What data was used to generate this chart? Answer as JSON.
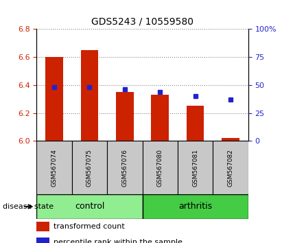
{
  "title": "GDS5243 / 10559580",
  "samples": [
    "GSM567074",
    "GSM567075",
    "GSM567076",
    "GSM567080",
    "GSM567081",
    "GSM567082"
  ],
  "transformed_counts": [
    6.6,
    6.65,
    6.35,
    6.33,
    6.25,
    6.02
  ],
  "percentile_ranks": [
    48,
    48,
    46,
    44,
    40,
    37
  ],
  "ylim_left": [
    6.0,
    6.8
  ],
  "ylim_right": [
    0,
    100
  ],
  "yticks_left": [
    6.0,
    6.2,
    6.4,
    6.6,
    6.8
  ],
  "yticks_right": [
    0,
    25,
    50,
    75,
    100
  ],
  "groups": [
    {
      "label": "control",
      "indices": [
        0,
        1,
        2
      ],
      "color": "#90ee90"
    },
    {
      "label": "arthritis",
      "indices": [
        3,
        4,
        5
      ],
      "color": "#44cc44"
    }
  ],
  "bar_color": "#cc2200",
  "dot_color": "#2222cc",
  "bar_width": 0.5,
  "tick_label_color_left": "#cc2200",
  "tick_label_color_right": "#2222cc",
  "grid_linestyle": ":",
  "xlabel_area_color": "#c8c8c8",
  "disease_state_label": "disease state",
  "legend_labels": [
    "transformed count",
    "percentile rank within the sample"
  ],
  "legend_colors": [
    "#cc2200",
    "#2222cc"
  ],
  "figsize": [
    4.11,
    3.54
  ],
  "dpi": 100
}
